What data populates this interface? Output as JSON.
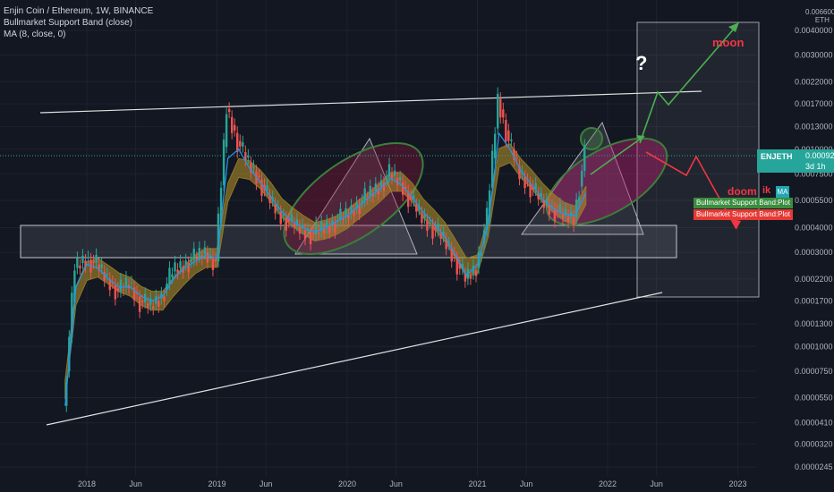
{
  "legend": {
    "title": "Enjin Coin / Ethereum, 1W, BINANCE",
    "indicator1": "Bullmarket Support Band (close)",
    "indicator2": "MA (8, close, 0)"
  },
  "axis": {
    "unit_top": "0.0066000",
    "unit": "ETH",
    "y_ticks": [
      "0.0040000",
      "0.0030000",
      "0.0022000",
      "0.0017000",
      "0.0013000",
      "0.0010000",
      "0.0007500",
      "0.0005500",
      "0.0004000",
      "0.0003000",
      "0.0002200",
      "0.0001700",
      "0.0001300",
      "0.0001000",
      "0.0000750",
      "0.0000550",
      "0.0000410",
      "0.0000320",
      "0.0000245"
    ],
    "x_ticks": [
      "2018",
      "Jun",
      "2019",
      "Jun",
      "2020",
      "Jun",
      "2021",
      "Jun",
      "2022",
      "Jun",
      "2023"
    ]
  },
  "current": {
    "symbol": "ENJETH",
    "price": "0.0009295",
    "countdown": "3d 1h"
  },
  "tags": {
    "ma": "MA",
    "band_green": "Bullmarket Support Band:Plot",
    "band_red": "Bullmarket Support Band:Plot"
  },
  "annotations": {
    "moon": "moon",
    "doom": "doom",
    "doom_suffix": "ik",
    "question": "?"
  },
  "colors": {
    "background": "#131722",
    "up": "#26a69a",
    "down": "#ef5350",
    "band_green": "#4caf50",
    "band_red": "#e53935",
    "ma": "#2196f3",
    "moon_arrow": "#4caf50",
    "doom_arrow": "#f23645"
  },
  "chart_data": {
    "type": "candlestick",
    "title": "Enjin Coin / Ethereum, 1W, BINANCE",
    "scale": "log",
    "ylim": [
      2.45e-05,
      0.0066
    ],
    "x": [
      "2017-11",
      "2017-12",
      "2018-01",
      "2018-02",
      "2018-03",
      "2018-04",
      "2018-05",
      "2018-06",
      "2018-07",
      "2018-08",
      "2018-09",
      "2018-10",
      "2018-11",
      "2018-12",
      "2019-01",
      "2019-02",
      "2019-03",
      "2019-04",
      "2019-05",
      "2019-06",
      "2019-07",
      "2019-08",
      "2019-09",
      "2019-10",
      "2019-11",
      "2019-12",
      "2020-01",
      "2020-02",
      "2020-03",
      "2020-04",
      "2020-05",
      "2020-06",
      "2020-07",
      "2020-08",
      "2020-09",
      "2020-10",
      "2020-11",
      "2020-12",
      "2021-01",
      "2021-02",
      "2021-03",
      "2021-04",
      "2021-05",
      "2021-06",
      "2021-07",
      "2021-08",
      "2021-09",
      "2021-10",
      "2021-11"
    ],
    "close": [
      5e-05,
      0.00025,
      0.00028,
      0.00026,
      0.00022,
      0.00019,
      0.00021,
      0.00017,
      0.00016,
      0.00018,
      0.00024,
      0.00026,
      0.00028,
      0.0003,
      0.00027,
      0.0016,
      0.0011,
      0.00085,
      0.0007,
      0.00055,
      0.00046,
      0.00042,
      0.00039,
      0.00037,
      0.0004,
      0.00043,
      0.00046,
      0.00052,
      0.00058,
      0.00065,
      0.00075,
      0.00068,
      0.00055,
      0.00045,
      0.0004,
      0.00035,
      0.00028,
      0.00022,
      0.00025,
      0.00045,
      0.0018,
      0.0011,
      0.00075,
      0.00065,
      0.00055,
      0.0005,
      0.00046,
      0.00045,
      0.0009295
    ],
    "series": [
      {
        "name": "Bullmarket Support Band (close)",
        "values": [
          6e-05,
          0.00018,
          0.00024,
          0.00025,
          0.00023,
          0.00021,
          0.0002,
          0.00018,
          0.00017,
          0.00017,
          0.0002,
          0.00023,
          0.00026,
          0.00028,
          0.00028,
          0.0006,
          0.0008,
          0.00078,
          0.0007,
          0.0006,
          0.0005,
          0.00045,
          0.00041,
          0.00038,
          0.00039,
          0.00041,
          0.00044,
          0.00049,
          0.00054,
          0.0006,
          0.00068,
          0.00068,
          0.0006,
          0.0005,
          0.00044,
          0.00038,
          0.00031,
          0.00025,
          0.00026,
          0.0004,
          0.0009,
          0.00095,
          0.0008,
          0.0007,
          0.0006,
          0.00053,
          0.00048,
          0.00046,
          0.00058
        ]
      },
      {
        "name": "MA (8, close, 0)",
        "values": [
          5e-05,
          0.0002,
          0.00026,
          0.00025,
          0.00022,
          0.0002,
          0.0002,
          0.00018,
          0.00017,
          0.00018,
          0.00022,
          0.00025,
          0.00027,
          0.00029,
          0.00028,
          0.0009,
          0.001,
          0.0008,
          0.00068,
          0.00057,
          0.00048,
          0.00043,
          0.0004,
          0.00038,
          0.0004,
          0.00043,
          0.00046,
          0.00051,
          0.00057,
          0.00063,
          0.00071,
          0.00066,
          0.00057,
          0.00048,
          0.00042,
          0.00036,
          0.00029,
          0.00023,
          0.00026,
          0.00042,
          0.0012,
          0.001,
          0.00078,
          0.00066,
          0.00056,
          0.0005,
          0.00047,
          0.00046,
          0.0006
        ]
      }
    ]
  }
}
